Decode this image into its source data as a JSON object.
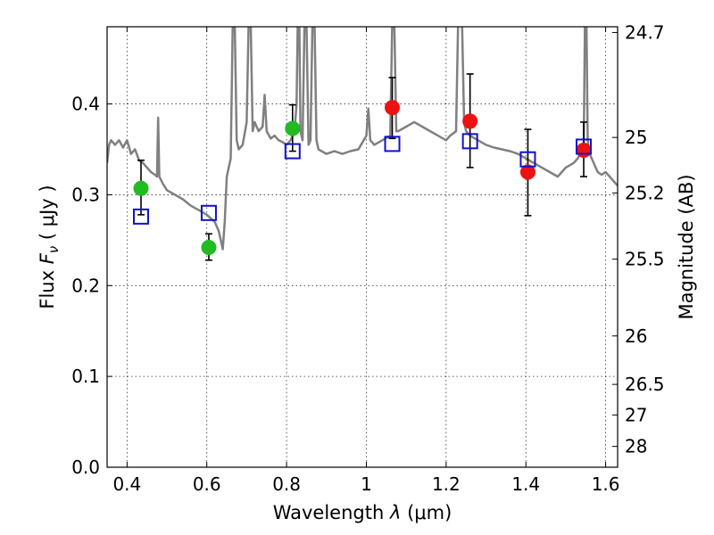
{
  "chart_data": {
    "type": "scatter",
    "x_axis": {
      "label_prefix": "Wavelength  ",
      "label_symbol": "λ",
      "label_suffix": " (μm)",
      "lim": [
        0.35,
        1.63
      ],
      "ticks": [
        0.4,
        0.6,
        0.8,
        1.0,
        1.2,
        1.4,
        1.6
      ],
      "tick_labels": [
        "0.4",
        "0.6",
        "0.8",
        "1",
        "1.2",
        "1.4",
        "1.6"
      ]
    },
    "y_axis": {
      "label_prefix": "Flux  ",
      "label_symbol": "F",
      "label_subscript": "ν",
      "label_suffix": "  ( μJy )",
      "lim": [
        0.0,
        0.485
      ],
      "ticks": [
        0.0,
        0.1,
        0.2,
        0.3,
        0.4
      ],
      "tick_labels": [
        "0.0",
        "0.1",
        "0.2",
        "0.3",
        "0.4"
      ]
    },
    "y2_axis": {
      "label": "Magnitude (AB)",
      "ticks": [
        24.7,
        25.0,
        25.2,
        25.5,
        26.0,
        26.5,
        27.0,
        28.0
      ],
      "tick_labels": [
        "24.7",
        "25",
        "25.2",
        "25.5",
        "26",
        "26.5",
        "27",
        "28"
      ]
    },
    "grid": true,
    "series": [
      {
        "kind": "line",
        "color": "#808080",
        "points": [
          [
            0.35,
            0.335
          ],
          [
            0.355,
            0.355
          ],
          [
            0.36,
            0.36
          ],
          [
            0.37,
            0.355
          ],
          [
            0.38,
            0.36
          ],
          [
            0.39,
            0.352
          ],
          [
            0.4,
            0.36
          ],
          [
            0.41,
            0.345
          ],
          [
            0.42,
            0.35
          ],
          [
            0.43,
            0.338
          ],
          [
            0.44,
            0.335
          ],
          [
            0.45,
            0.33
          ],
          [
            0.46,
            0.325
          ],
          [
            0.47,
            0.322
          ],
          [
            0.475,
            0.32
          ],
          [
            0.478,
            0.385
          ],
          [
            0.481,
            0.32
          ],
          [
            0.49,
            0.312
          ],
          [
            0.5,
            0.305
          ],
          [
            0.52,
            0.3
          ],
          [
            0.54,
            0.295
          ],
          [
            0.56,
            0.288
          ],
          [
            0.58,
            0.283
          ],
          [
            0.6,
            0.278
          ],
          [
            0.62,
            0.27
          ],
          [
            0.625,
            0.265
          ],
          [
            0.63,
            0.26
          ],
          [
            0.635,
            0.25
          ],
          [
            0.64,
            0.24
          ],
          [
            0.645,
            0.27
          ],
          [
            0.65,
            0.32
          ],
          [
            0.655,
            0.33
          ],
          [
            0.66,
            0.34
          ],
          [
            0.665,
            0.49
          ],
          [
            0.67,
            0.49
          ],
          [
            0.675,
            0.36
          ],
          [
            0.68,
            0.35
          ],
          [
            0.69,
            0.355
          ],
          [
            0.7,
            0.38
          ],
          [
            0.705,
            0.49
          ],
          [
            0.71,
            0.49
          ],
          [
            0.715,
            0.37
          ],
          [
            0.72,
            0.38
          ],
          [
            0.73,
            0.37
          ],
          [
            0.74,
            0.375
          ],
          [
            0.745,
            0.41
          ],
          [
            0.75,
            0.37
          ],
          [
            0.76,
            0.362
          ],
          [
            0.77,
            0.365
          ],
          [
            0.78,
            0.36
          ],
          [
            0.79,
            0.358
          ],
          [
            0.8,
            0.355
          ],
          [
            0.81,
            0.36
          ],
          [
            0.815,
            0.365
          ],
          [
            0.82,
            0.37
          ],
          [
            0.825,
            0.4
          ],
          [
            0.828,
            0.49
          ],
          [
            0.832,
            0.49
          ],
          [
            0.835,
            0.37
          ],
          [
            0.84,
            0.36
          ],
          [
            0.845,
            0.49
          ],
          [
            0.85,
            0.49
          ],
          [
            0.855,
            0.355
          ],
          [
            0.86,
            0.36
          ],
          [
            0.865,
            0.49
          ],
          [
            0.87,
            0.49
          ],
          [
            0.875,
            0.36
          ],
          [
            0.88,
            0.35
          ],
          [
            0.9,
            0.345
          ],
          [
            0.92,
            0.348
          ],
          [
            0.94,
            0.345
          ],
          [
            0.96,
            0.348
          ],
          [
            0.98,
            0.35
          ],
          [
            1.0,
            0.365
          ],
          [
            1.005,
            0.395
          ],
          [
            1.01,
            0.36
          ],
          [
            1.02,
            0.355
          ],
          [
            1.04,
            0.36
          ],
          [
            1.06,
            0.365
          ],
          [
            1.065,
            0.49
          ],
          [
            1.07,
            0.49
          ],
          [
            1.075,
            0.37
          ],
          [
            1.08,
            0.37
          ],
          [
            1.1,
            0.375
          ],
          [
            1.12,
            0.38
          ],
          [
            1.14,
            0.375
          ],
          [
            1.16,
            0.37
          ],
          [
            1.18,
            0.365
          ],
          [
            1.2,
            0.36
          ],
          [
            1.21,
            0.365
          ],
          [
            1.225,
            0.37
          ],
          [
            1.23,
            0.49
          ],
          [
            1.24,
            0.49
          ],
          [
            1.245,
            0.38
          ],
          [
            1.25,
            0.37
          ],
          [
            1.26,
            0.365
          ],
          [
            1.28,
            0.36
          ],
          [
            1.3,
            0.355
          ],
          [
            1.32,
            0.352
          ],
          [
            1.34,
            0.35
          ],
          [
            1.36,
            0.348
          ],
          [
            1.38,
            0.345
          ],
          [
            1.4,
            0.34
          ],
          [
            1.42,
            0.335
          ],
          [
            1.44,
            0.33
          ],
          [
            1.46,
            0.325
          ],
          [
            1.48,
            0.32
          ],
          [
            1.5,
            0.33
          ],
          [
            1.52,
            0.335
          ],
          [
            1.53,
            0.34
          ],
          [
            1.54,
            0.348
          ],
          [
            1.545,
            0.35
          ],
          [
            1.548,
            0.49
          ],
          [
            1.552,
            0.49
          ],
          [
            1.555,
            0.36
          ],
          [
            1.56,
            0.345
          ],
          [
            1.57,
            0.335
          ],
          [
            1.58,
            0.325
          ],
          [
            1.59,
            0.322
          ],
          [
            1.6,
            0.325
          ],
          [
            1.61,
            0.32
          ],
          [
            1.62,
            0.315
          ],
          [
            1.63,
            0.31
          ]
        ]
      },
      {
        "kind": "errorbar",
        "color": "#000000",
        "bars": [
          {
            "x": 0.435,
            "low": 0.278,
            "high": 0.338
          },
          {
            "x": 0.605,
            "low": 0.228,
            "high": 0.257
          },
          {
            "x": 0.815,
            "low": 0.348,
            "high": 0.399
          },
          {
            "x": 1.065,
            "low": 0.362,
            "high": 0.429
          },
          {
            "x": 1.26,
            "low": 0.33,
            "high": 0.433
          },
          {
            "x": 1.405,
            "low": 0.277,
            "high": 0.372
          },
          {
            "x": 1.545,
            "low": 0.32,
            "high": 0.38
          }
        ]
      },
      {
        "kind": "points",
        "marker": "circle",
        "color": "#22bb22",
        "points": [
          [
            0.435,
            0.307
          ],
          [
            0.605,
            0.242
          ],
          [
            0.815,
            0.373
          ]
        ]
      },
      {
        "kind": "points",
        "marker": "circle",
        "color": "#ee1111",
        "points": [
          [
            1.065,
            0.396
          ],
          [
            1.26,
            0.381
          ],
          [
            1.405,
            0.325
          ],
          [
            1.545,
            0.349
          ]
        ]
      },
      {
        "kind": "points",
        "marker": "square",
        "color": "#1111cc",
        "points": [
          [
            0.435,
            0.276
          ],
          [
            0.605,
            0.28
          ],
          [
            0.815,
            0.348
          ],
          [
            1.065,
            0.356
          ],
          [
            1.26,
            0.359
          ],
          [
            1.405,
            0.339
          ],
          [
            1.545,
            0.353
          ]
        ]
      }
    ]
  }
}
